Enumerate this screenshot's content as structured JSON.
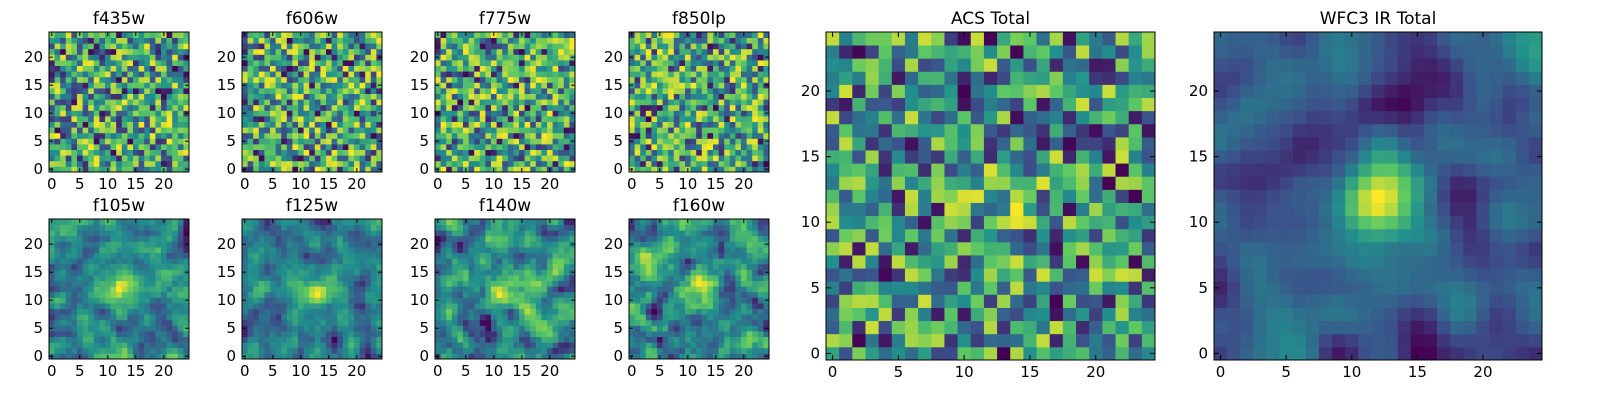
{
  "figure": {
    "colormap": "viridis",
    "colors": [
      "#440154",
      "#3b528b",
      "#21908d",
      "#5dc863",
      "#fde725"
    ]
  },
  "chart_data": [
    {
      "type": "heatmap",
      "title": "f435w",
      "grid_size": 25,
      "xlim": [
        -0.5,
        24.5
      ],
      "ylim": [
        -0.5,
        24.5
      ],
      "xticks": [
        "0",
        "5",
        "10",
        "15",
        "20"
      ],
      "yticks": [
        "0",
        "5",
        "10",
        "15",
        "20"
      ],
      "seed": 11,
      "smoothing": 0,
      "pattern": "noise"
    },
    {
      "type": "heatmap",
      "title": "f606w",
      "grid_size": 25,
      "xlim": [
        -0.5,
        24.5
      ],
      "ylim": [
        -0.5,
        24.5
      ],
      "xticks": [
        "0",
        "5",
        "10",
        "15",
        "20"
      ],
      "yticks": [
        "0",
        "5",
        "10",
        "15",
        "20"
      ],
      "seed": 23,
      "smoothing": 0,
      "pattern": "noise"
    },
    {
      "type": "heatmap",
      "title": "f775w",
      "grid_size": 25,
      "xlim": [
        -0.5,
        24.5
      ],
      "ylim": [
        -0.5,
        24.5
      ],
      "xticks": [
        "0",
        "5",
        "10",
        "15",
        "20"
      ],
      "yticks": [
        "0",
        "5",
        "10",
        "15",
        "20"
      ],
      "seed": 37,
      "smoothing": 0,
      "pattern": "noise"
    },
    {
      "type": "heatmap",
      "title": "f850lp",
      "grid_size": 25,
      "xlim": [
        -0.5,
        24.5
      ],
      "ylim": [
        -0.5,
        24.5
      ],
      "xticks": [
        "0",
        "5",
        "10",
        "15",
        "20"
      ],
      "yticks": [
        "0",
        "5",
        "10",
        "15",
        "20"
      ],
      "seed": 41,
      "smoothing": 0,
      "pattern": "noise"
    },
    {
      "type": "heatmap",
      "title": "f105w",
      "grid_size": 25,
      "xlim": [
        -0.5,
        24.5
      ],
      "ylim": [
        -0.5,
        24.5
      ],
      "xticks": [
        "0",
        "5",
        "10",
        "15",
        "20"
      ],
      "yticks": [
        "0",
        "5",
        "10",
        "15",
        "20"
      ],
      "seed": 53,
      "smoothing": 1,
      "pattern": "smooth"
    },
    {
      "type": "heatmap",
      "title": "f125w",
      "grid_size": 25,
      "xlim": [
        -0.5,
        24.5
      ],
      "ylim": [
        -0.5,
        24.5
      ],
      "xticks": [
        "0",
        "5",
        "10",
        "15",
        "20"
      ],
      "yticks": [
        "0",
        "5",
        "10",
        "15",
        "20"
      ],
      "seed": 67,
      "smoothing": 1,
      "pattern": "smooth"
    },
    {
      "type": "heatmap",
      "title": "f140w",
      "grid_size": 25,
      "xlim": [
        -0.5,
        24.5
      ],
      "ylim": [
        -0.5,
        24.5
      ],
      "xticks": [
        "0",
        "5",
        "10",
        "15",
        "20"
      ],
      "yticks": [
        "0",
        "5",
        "10",
        "15",
        "20"
      ],
      "seed": 79,
      "smoothing": 1,
      "pattern": "smooth"
    },
    {
      "type": "heatmap",
      "title": "f160w",
      "grid_size": 25,
      "xlim": [
        -0.5,
        24.5
      ],
      "ylim": [
        -0.5,
        24.5
      ],
      "xticks": [
        "0",
        "5",
        "10",
        "15",
        "20"
      ],
      "yticks": [
        "0",
        "5",
        "10",
        "15",
        "20"
      ],
      "seed": 83,
      "smoothing": 1,
      "pattern": "smooth"
    },
    {
      "type": "heatmap",
      "title": "ACS Total",
      "grid_size": 25,
      "xlim": [
        -0.5,
        24.5
      ],
      "ylim": [
        -0.5,
        24.5
      ],
      "xticks": [
        "0",
        "5",
        "10",
        "15",
        "20"
      ],
      "yticks": [
        "0",
        "5",
        "10",
        "15",
        "20"
      ],
      "seed": 97,
      "smoothing": 0,
      "pattern": "acs"
    },
    {
      "type": "heatmap",
      "title": "WFC3 IR Total",
      "grid_size": 25,
      "xlim": [
        -0.5,
        24.5
      ],
      "ylim": [
        -0.5,
        24.5
      ],
      "xticks": [
        "0",
        "5",
        "10",
        "15",
        "20"
      ],
      "yticks": [
        "0",
        "5",
        "10",
        "15",
        "20"
      ],
      "seed": 101,
      "smoothing": 2,
      "pattern": "ir"
    }
  ]
}
